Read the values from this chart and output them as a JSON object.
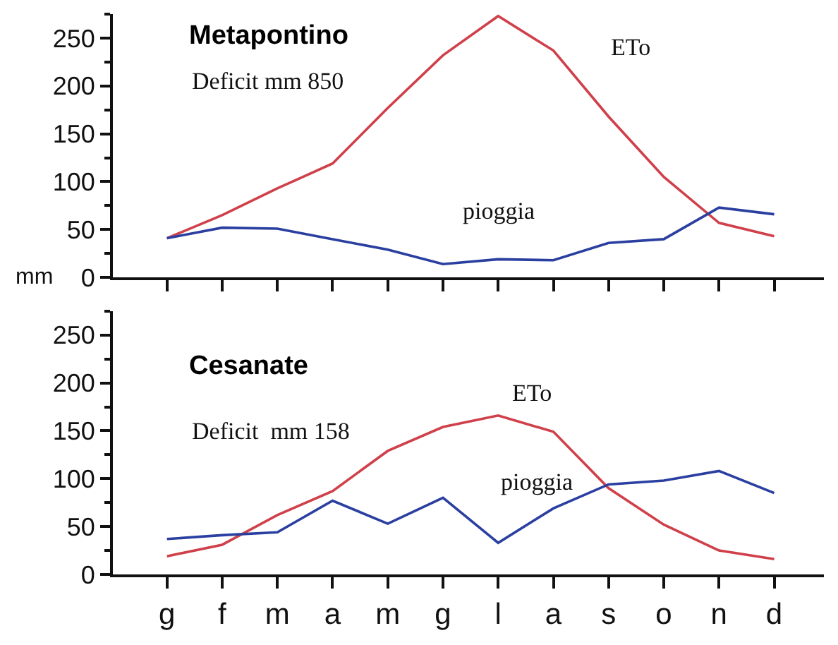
{
  "chart_data": [
    {
      "type": "line",
      "title": "Metapontino",
      "ylabel": "mm",
      "annotations": [
        "Deficit mm 850"
      ],
      "categories": [
        null,
        null,
        null,
        null,
        null,
        null,
        null,
        null,
        null,
        null,
        null,
        null
      ],
      "series": [
        {
          "name": "ETo",
          "color": "#d0404a",
          "values": [
            41,
            65,
            93,
            119,
            177,
            232,
            273,
            237,
            168,
            105,
            57,
            43
          ]
        },
        {
          "name": "pioggia",
          "color": "#2a3fa0",
          "values": [
            41,
            52,
            51,
            40,
            29,
            14,
            19,
            18,
            36,
            40,
            73,
            66
          ]
        }
      ],
      "ylim": [
        0,
        275
      ],
      "yticks": [
        0,
        50,
        100,
        150,
        200,
        250
      ]
    },
    {
      "type": "line",
      "title": "Cesanate",
      "annotations": [
        "Deficit  mm 158"
      ],
      "categories": [
        "g",
        "f",
        "m",
        "a",
        "m",
        "g",
        "l",
        "a",
        "s",
        "o",
        "n",
        "d"
      ],
      "series": [
        {
          "name": "ETo",
          "color": "#d0404a",
          "values": [
            19,
            31,
            62,
            87,
            129,
            154,
            166,
            149,
            90,
            52,
            25,
            16
          ]
        },
        {
          "name": "pioggia",
          "color": "#2a3fa0",
          "values": [
            37,
            41,
            44,
            77,
            53,
            80,
            33,
            69,
            94,
            98,
            108,
            85
          ]
        }
      ],
      "ylim": [
        0,
        275
      ],
      "yticks": [
        0,
        50,
        100,
        150,
        200,
        250
      ]
    }
  ]
}
